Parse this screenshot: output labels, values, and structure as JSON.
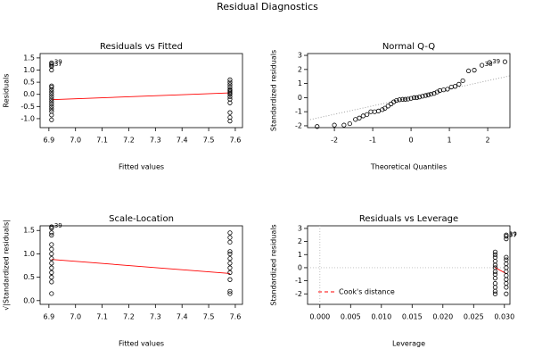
{
  "title": "Residual Diagnostics",
  "chart_data": [
    {
      "type": "scatter",
      "title": "Residuals vs Fitted",
      "xlabel": "Fitted values",
      "ylabel": "Residuals",
      "xlim": [
        6.867,
        7.627
      ],
      "ylim": [
        -1.37,
        1.68
      ],
      "xticks": [
        6.9,
        {
          "value": 7.0,
          "label": "7.0"
        },
        7.1,
        7.2,
        7.3,
        7.4,
        7.5,
        7.6
      ],
      "yticks": [
        {
          "value": -1.0,
          "label": "-1.0"
        },
        -0.5,
        {
          "value": 0.0,
          "label": "0.0"
        },
        0.5,
        {
          "value": 1.0,
          "label": "1.0"
        },
        1.5
      ],
      "series": [
        {
          "color": "#000000",
          "x": [
            6.91,
            6.91,
            6.91,
            6.91,
            6.91,
            6.91,
            6.91,
            6.91,
            6.91,
            6.91,
            6.91,
            6.91,
            6.91,
            6.91,
            6.91,
            6.91,
            6.91,
            6.91,
            6.91,
            7.58,
            7.58,
            7.58,
            7.58,
            7.58,
            7.58,
            7.58,
            7.58,
            7.58,
            7.58,
            7.58,
            7.58,
            7.58,
            7.58,
            7.58
          ],
          "y": [
            -1.05,
            -0.85,
            -0.7,
            -0.6,
            -0.5,
            -0.4,
            -0.3,
            -0.2,
            -0.1,
            0.0,
            0.1,
            0.2,
            0.3,
            0.35,
            1.0,
            1.15,
            1.2,
            1.25,
            1.3,
            -1.1,
            -0.95,
            -0.75,
            -0.35,
            -0.2,
            -0.1,
            0.0,
            0.05,
            0.1,
            0.15,
            0.2,
            0.3,
            0.4,
            0.5,
            0.6
          ]
        }
      ],
      "lines": [
        {
          "color": "#ff0000",
          "x": [
            6.91,
            7.58
          ],
          "y": [
            -0.22,
            0.06
          ]
        }
      ],
      "annotations": [
        {
          "text": "39",
          "x": 6.91,
          "y": 1.3
        },
        {
          "text": "37",
          "x": 6.91,
          "y": 1.2
        }
      ]
    },
    {
      "type": "scatter",
      "title": "Normal Q-Q",
      "xlabel": "Theoretical Quantiles",
      "ylabel": "Standardized residuals",
      "xlim": [
        -2.7,
        2.58
      ],
      "ylim": [
        -2.13,
        3.13
      ],
      "xticks": [
        -2,
        -1,
        0,
        1,
        2
      ],
      "yticks": [
        -2,
        -1,
        0,
        1,
        2,
        3
      ],
      "series": [
        {
          "color": "#000000",
          "x": [
            -2.45,
            -2.0,
            -1.75,
            -1.6,
            -1.45,
            -1.35,
            -1.25,
            -1.15,
            -1.05,
            -0.95,
            -0.85,
            -0.75,
            -0.68,
            -0.6,
            -0.52,
            -0.45,
            -0.38,
            -0.3,
            -0.22,
            -0.15,
            -0.08,
            0.0,
            0.08,
            0.15,
            0.22,
            0.3,
            0.38,
            0.45,
            0.52,
            0.6,
            0.68,
            0.75,
            0.85,
            0.95,
            1.05,
            1.15,
            1.25,
            1.35,
            1.5,
            1.65,
            1.85,
            2.05,
            2.45
          ],
          "y": [
            -2.05,
            -1.95,
            -1.95,
            -1.85,
            -1.55,
            -1.45,
            -1.3,
            -1.2,
            -1.0,
            -1.0,
            -0.95,
            -0.85,
            -0.75,
            -0.6,
            -0.45,
            -0.3,
            -0.2,
            -0.15,
            -0.12,
            -0.12,
            -0.1,
            -0.05,
            0.0,
            0.0,
            0.05,
            0.1,
            0.15,
            0.2,
            0.25,
            0.3,
            0.4,
            0.5,
            0.55,
            0.6,
            0.75,
            0.8,
            0.95,
            1.2,
            1.9,
            1.95,
            2.3,
            2.5,
            2.55
          ]
        }
      ],
      "lines": [
        {
          "color": "#999999",
          "dash": "1,2",
          "x": [
            -2.7,
            2.58
          ],
          "y": [
            -1.6,
            1.55
          ]
        }
      ],
      "annotations": [
        {
          "text": "39",
          "x": 2.05,
          "y": 2.5
        },
        {
          "text": "38",
          "x": 1.85,
          "y": 2.3
        }
      ]
    },
    {
      "type": "scatter",
      "title": "Scale-Location",
      "xlabel": "Fitted values",
      "ylabel": "√|Standardized residuals|",
      "xlim": [
        6.867,
        7.627
      ],
      "ylim": [
        -0.08,
        1.6
      ],
      "xticks": [
        6.9,
        {
          "value": 7.0,
          "label": "7.0"
        },
        7.1,
        7.2,
        7.3,
        7.4,
        7.5,
        7.6
      ],
      "yticks": [
        {
          "value": 0.0,
          "label": "0.0"
        },
        0.5,
        {
          "value": 1.0,
          "label": "1.0"
        },
        1.5
      ],
      "series": [
        {
          "color": "#000000",
          "x": [
            6.91,
            6.91,
            6.91,
            6.91,
            6.91,
            6.91,
            6.91,
            6.91,
            6.91,
            6.91,
            6.91,
            6.91,
            6.91,
            6.91,
            7.58,
            7.58,
            7.58,
            7.58,
            7.58,
            7.58,
            7.58,
            7.58,
            7.58,
            7.58,
            7.58,
            7.58
          ],
          "y": [
            0.15,
            0.4,
            0.5,
            0.6,
            0.7,
            0.8,
            0.9,
            1.0,
            1.1,
            1.2,
            1.4,
            1.45,
            1.55,
            1.58,
            0.15,
            0.2,
            0.45,
            0.6,
            0.7,
            0.8,
            0.9,
            1.0,
            1.05,
            1.25,
            1.35,
            1.45
          ]
        }
      ],
      "lines": [
        {
          "color": "#ff0000",
          "x": [
            6.91,
            7.58
          ],
          "y": [
            0.88,
            0.58
          ]
        }
      ],
      "annotations": [
        {
          "text": "39",
          "x": 6.91,
          "y": 1.58
        }
      ]
    },
    {
      "type": "scatter",
      "title": "Residuals vs Leverage",
      "xlabel": "Leverage",
      "ylabel": "Standardized residuals",
      "xlim": [
        -0.002,
        0.0309
      ],
      "ylim": [
        -2.8,
        3.2
      ],
      "xticks": [
        {
          "value": 0.0,
          "label": "0.000"
        },
        0.005,
        {
          "value": 0.01,
          "label": "0.010"
        },
        0.015,
        {
          "value": 0.02,
          "label": "0.020"
        },
        0.025,
        {
          "value": 0.03,
          "label": "0.030"
        }
      ],
      "yticks": [
        -2,
        -1,
        0,
        1,
        2,
        3
      ],
      "series": [
        {
          "color": "#000000",
          "x": [
            0.0285,
            0.0285,
            0.0285,
            0.0285,
            0.0285,
            0.0285,
            0.0285,
            0.0285,
            0.0285,
            0.0285,
            0.0285,
            0.0285,
            0.0285,
            0.0303,
            0.0303,
            0.0303,
            0.0303,
            0.0303,
            0.0303,
            0.0303,
            0.0303,
            0.0303,
            0.0303,
            0.0303,
            0.0303,
            0.0303
          ],
          "y": [
            -2.0,
            -1.8,
            -1.5,
            -1.2,
            -0.8,
            -0.5,
            -0.3,
            0.0,
            0.2,
            0.5,
            0.8,
            1.0,
            1.2,
            -2.0,
            -1.5,
            -1.2,
            -0.9,
            -0.6,
            -0.3,
            0.0,
            0.3,
            0.6,
            0.8,
            2.2,
            2.4,
            2.5
          ]
        }
      ],
      "lines": [
        {
          "color": "#bbbbbb",
          "dash": "1,2",
          "x": [
            -0.002,
            0.0309
          ],
          "y": [
            0,
            0
          ]
        },
        {
          "color": "#bbbbbb",
          "dash": "1,2",
          "x": [
            0,
            0
          ],
          "y": [
            -2.8,
            3.2
          ]
        },
        {
          "color": "#ff0000",
          "x": [
            0.0285,
            0.0303
          ],
          "y": [
            0.0,
            -0.45
          ]
        }
      ],
      "legend": {
        "name": "Cook's distance",
        "color": "#ff0000",
        "dash": "4,3"
      },
      "annotations": [
        {
          "text": "39",
          "x": 0.0303,
          "y": 2.5
        },
        {
          "text": "37",
          "x": 0.0303,
          "y": 2.4
        }
      ]
    }
  ]
}
